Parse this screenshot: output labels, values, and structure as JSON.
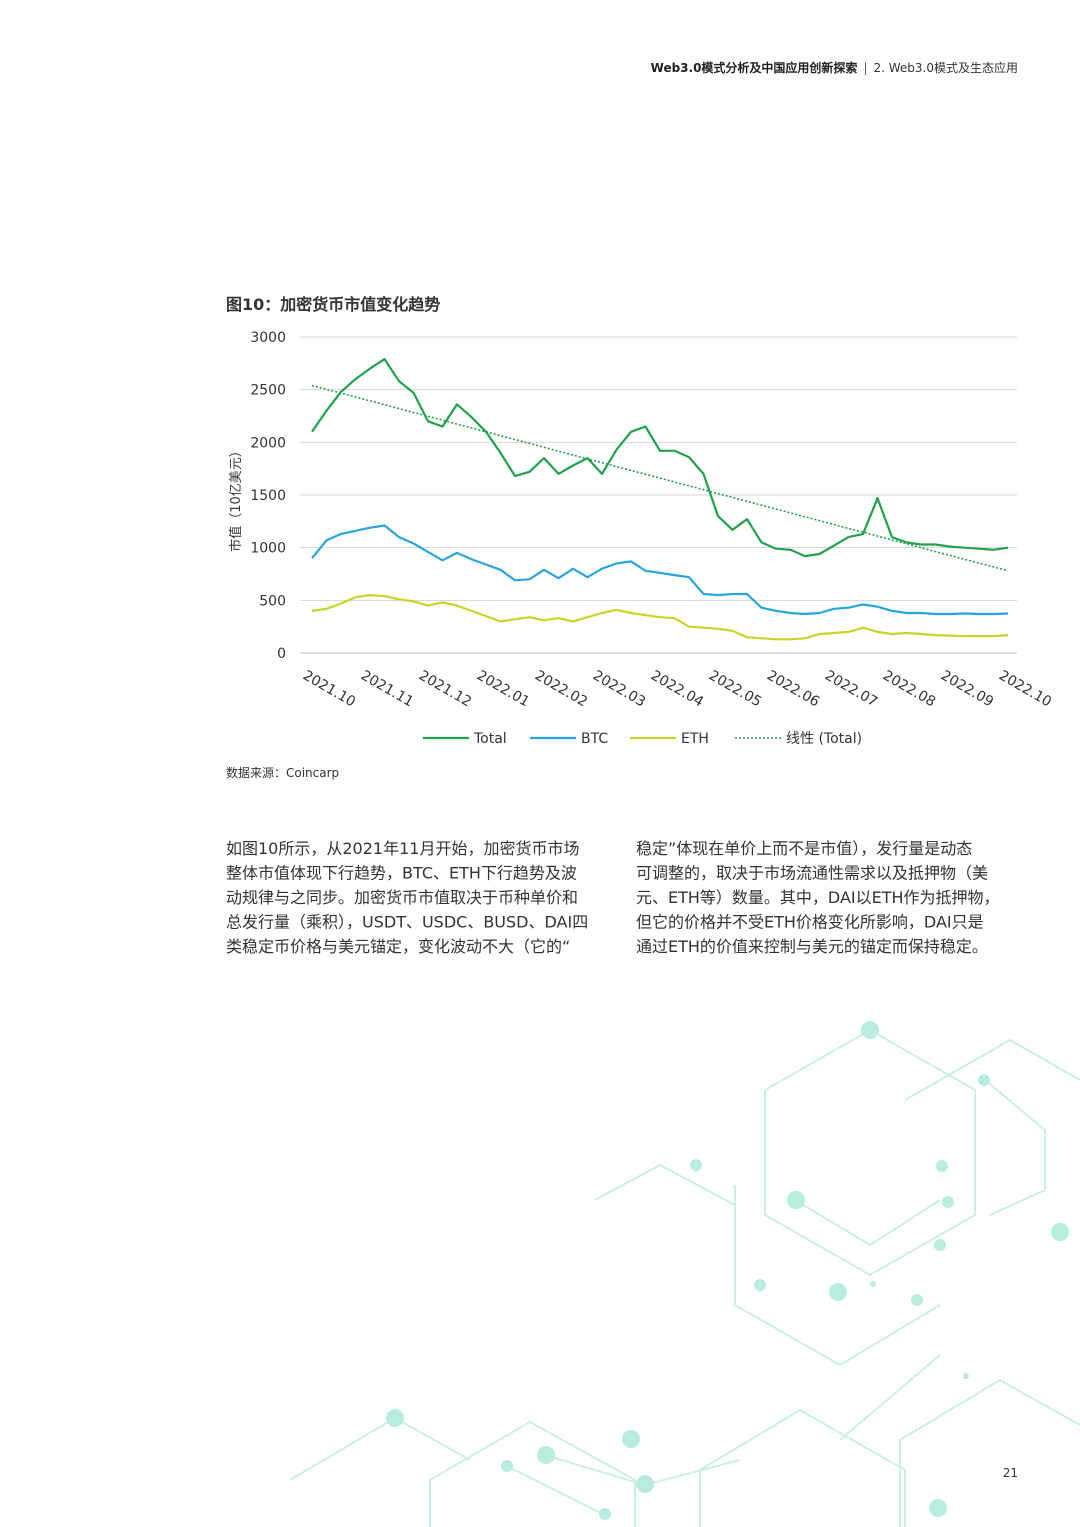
{
  "header": {
    "title": "Web3.0模式分析及中国应用创新探索",
    "separator": "|",
    "section": "2. Web3.0模式及生态应用"
  },
  "chart_data": {
    "type": "line",
    "title": "图10：加密货币市值变化趋势",
    "y_label": "市值（10亿美元）",
    "categories": [
      "2021.10",
      null,
      null,
      null,
      "2021.11",
      null,
      null,
      null,
      "2021.12",
      null,
      null,
      null,
      "2022.01",
      null,
      null,
      null,
      "2022.02",
      null,
      null,
      null,
      "2022.03",
      null,
      null,
      null,
      "2022.04",
      null,
      null,
      null,
      "2022.05",
      null,
      null,
      null,
      "2022.06",
      null,
      null,
      null,
      "2022.07",
      null,
      null,
      null,
      "2022.08",
      null,
      null,
      null,
      "2022.09",
      null,
      null,
      null,
      "2022.10"
    ],
    "series": [
      {
        "name": "Total",
        "color": "#22a04b",
        "values": [
          2100,
          2300,
          2480,
          2600,
          2700,
          2790,
          2580,
          2470,
          2200,
          2150,
          2360,
          2240,
          2100,
          1900,
          1680,
          1720,
          1850,
          1700,
          1780,
          1850,
          1700,
          1930,
          2100,
          2150,
          1920,
          1920,
          1860,
          1700,
          1300,
          1170,
          1270,
          1050,
          990,
          980,
          920,
          940,
          1020,
          1100,
          1130,
          1470,
          1100,
          1050,
          1030,
          1030,
          1010,
          1000,
          990,
          980,
          1000
        ]
      },
      {
        "name": "BTC",
        "color": "#2aa5dc",
        "values": [
          900,
          1070,
          1130,
          1160,
          1190,
          1210,
          1100,
          1040,
          960,
          880,
          950,
          890,
          840,
          790,
          690,
          700,
          790,
          710,
          800,
          720,
          800,
          850,
          870,
          780,
          760,
          740,
          720,
          560,
          550,
          560,
          560,
          430,
          400,
          380,
          370,
          380,
          420,
          430,
          460,
          440,
          400,
          380,
          380,
          370,
          370,
          375,
          370,
          370,
          375
        ]
      },
      {
        "name": "ETH",
        "color": "#c8d42a",
        "values": [
          400,
          420,
          470,
          530,
          550,
          540,
          510,
          490,
          450,
          480,
          450,
          400,
          350,
          300,
          320,
          340,
          310,
          330,
          300,
          340,
          380,
          410,
          380,
          360,
          340,
          330,
          250,
          240,
          230,
          210,
          150,
          140,
          130,
          130,
          140,
          180,
          190,
          200,
          240,
          200,
          180,
          190,
          180,
          170,
          165,
          160,
          160,
          160,
          170
        ]
      },
      {
        "name": "线性 (Total)",
        "color": "#22a04b",
        "dotted": true,
        "values": [
          2540,
          2503,
          2467,
          2430,
          2393,
          2357,
          2320,
          2283,
          2247,
          2210,
          2173,
          2137,
          2100,
          2063,
          2027,
          1990,
          1953,
          1917,
          1880,
          1843,
          1807,
          1770,
          1733,
          1697,
          1660,
          1623,
          1587,
          1550,
          1513,
          1477,
          1440,
          1403,
          1367,
          1330,
          1293,
          1257,
          1220,
          1183,
          1147,
          1110,
          1073,
          1037,
          1000,
          963,
          927,
          890,
          853,
          817,
          780
        ]
      }
    ],
    "ylim": [
      0,
      3000
    ],
    "yticks": [
      0,
      500,
      1000,
      1500,
      2000,
      2500,
      3000
    ],
    "grid": true,
    "legend": "bottom"
  },
  "source": "数据来源：Coincarp",
  "body": {
    "columns": [
      [
        "如图10所示，从2021年11月开始，加密货币市场",
        "整体市值体现下行趋势，BTC、ETH下行趋势及波",
        "动规律与之同步。加密货币市值取决于币种单价和",
        "总发行量（乘积），USDT、USDC、BUSD、DAI四",
        "类稳定币价格与美元锚定，变化波动不大（它的“"
      ],
      [
        "稳定”体现在单价上而不是市值），发行量是动态",
        "可调整的，取决于市场流通性需求以及抵押物（美",
        "元、ETH等）数量。其中，DAI以ETH作为抵押物，",
        "但它的价格并不受ETH价格变化所影响，DAI只是",
        "通过ETH的价值来控制与美元的锚定而保持稳定。"
      ]
    ]
  },
  "page_number": "21"
}
